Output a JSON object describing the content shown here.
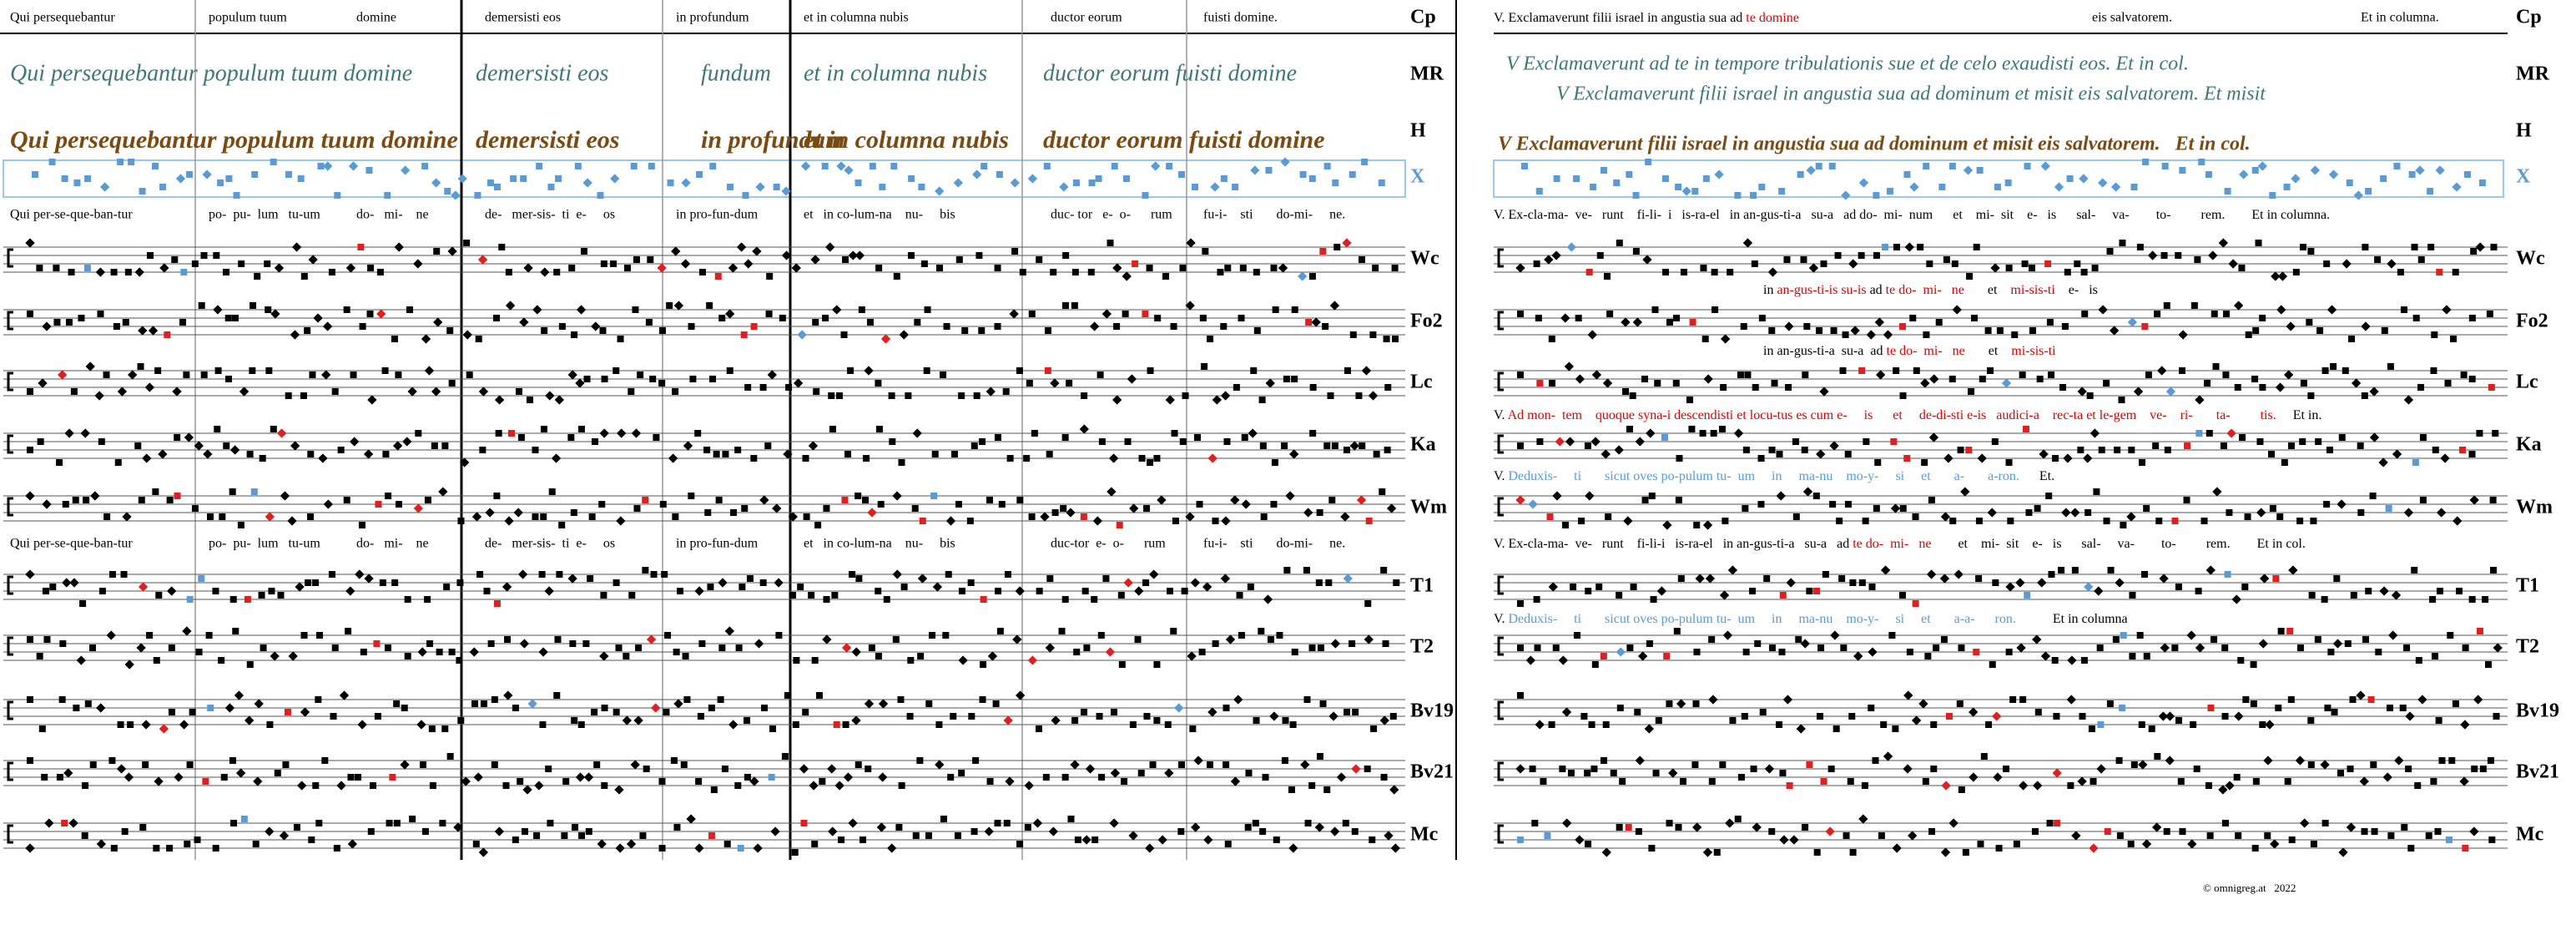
{
  "left": {
    "header": [
      "Qui persequebantur",
      "populum tuum",
      "domine",
      "demersisti eos",
      "in profundum",
      "et in columna nubis",
      "ductor eorum",
      "fuisti domine."
    ],
    "mr": [
      "Qui persequebantur populum tuum domine",
      "demersisti eos",
      "fundum",
      "et in columna nubis",
      "ductor eorum fuisti domine"
    ],
    "h": [
      "Qui persequebantur populum tuum domine",
      "demersisti eos",
      "in profundum",
      "et in columna nubis",
      "ductor eorum fuisti domine"
    ],
    "lyrics": [
      [
        "Qui per-se-que-ban-tur",
        "po-  pu-  lum   tu-um",
        "do-   mi-    ne",
        "de-   mer-sis-  ti  e-     os",
        "in pro-fun-dum",
        "et   in co-lum-na    nu-     bis",
        "duc- tor   e-  o-      rum",
        "fu-i-    sti       do-mi-     ne."
      ],
      [
        "Qui per-se-que-ban-tur",
        "po-  pu-  lum   tu-um",
        "do-   mi-    ne",
        "de-   mer-sis-  ti  e-     os",
        "in pro-fun-dum",
        "et   in co-lum-na    nu-     bis",
        "duc-tor  e-  o-      rum",
        "fu-i-    sti       do-mi-     ne."
      ]
    ]
  },
  "right": {
    "header": [
      {
        "text": "V. Exclamaverunt filii israel in angustia sua ad "
      },
      {
        "text": "te domine",
        "color": "#e00000"
      }
    ],
    "header2": "eis salvatorem.",
    "header3": "Et in columna.",
    "mr": [
      "V Exclamaverunt ad te in tempore tribulationis sue et de celo exaudisti eos. Et in col.",
      "V Exclamaverunt filii israel in angustia sua ad dominum et misit eis salvatorem. Et misit"
    ],
    "h": "V Exclamaverunt filii israel in angustia sua ad dominum et misit eis salvatorem.   Et in col.",
    "lyrics": [
      [
        {
          "text": "V. Ex-cla-ma-  ve-   runt    fi-li-  i   is-ra-el   in an-gus-ti-a   su-a   ad do-  mi-  num      et    mi-  sit    e-   is      sal-     va-        to-         rem.        Et in columna."
        }
      ],
      [
        {
          "text": "in "
        },
        {
          "text": "an-gus-ti-is su-is",
          "color": "#e00000"
        },
        {
          "text": " ad "
        },
        {
          "text": "te do-  mi-   ne",
          "color": "#e00000"
        },
        {
          "text": "       et    "
        },
        {
          "text": "mi-sis-ti",
          "color": "#e00000"
        },
        {
          "text": "    e-   is"
        }
      ],
      [
        {
          "text": "in an-gus-ti-a  su-a  ad "
        },
        {
          "text": "te do-  mi-   ne",
          "color": "#e00000"
        },
        {
          "text": "       et    "
        },
        {
          "text": "mi-sis-ti",
          "color": "#e00000"
        }
      ],
      [
        {
          "text": "V. "
        },
        {
          "text": "Ad mon-  tem    quoque syna-i descendisti et locu-tus es cum e-     is      et     de-di-sti e-is   audici-a    rec-ta et le-gem    ve-    ri-       ta-         tis.",
          "color": "#e00000"
        },
        {
          "text": "     Et in."
        }
      ],
      [
        {
          "text": "V. "
        },
        {
          "text": "Deduxis-     ti       sicut oves po-pulum tu-  um     in     ma-nu    mo-y-     si     et       a-       a-ron.",
          "color": "#5b9bd5"
        },
        {
          "text": "      Et."
        }
      ],
      [
        {
          "text": "V. Ex-cla-ma-  ve-   runt    fi-li-i   is-ra-el   in an-gus-ti-a   su-a   ad "
        },
        {
          "text": "te do-  mi-   ne",
          "color": "#e00000"
        },
        {
          "text": "        et    mi-  sit    e-   is      sal-     va-        to-         rem.        Et in col."
        }
      ],
      [
        {
          "text": "V. "
        },
        {
          "text": "Deduxis-     ti       sicut oves po-pulum tu-  um     in     ma-nu    mo-y-     si     et       a-a-      ron.",
          "color": "#5b9bd5"
        },
        {
          "text": "           Et in columna"
        }
      ]
    ]
  },
  "sigla": [
    "Cp",
    "MR",
    "H",
    "X",
    "Wc",
    "Fo2",
    "Lc",
    "Ka",
    "Wm",
    "T1",
    "T2",
    "Bv19",
    "Bv21",
    "Mc"
  ],
  "footer": "© omnigreg.at   2022"
}
